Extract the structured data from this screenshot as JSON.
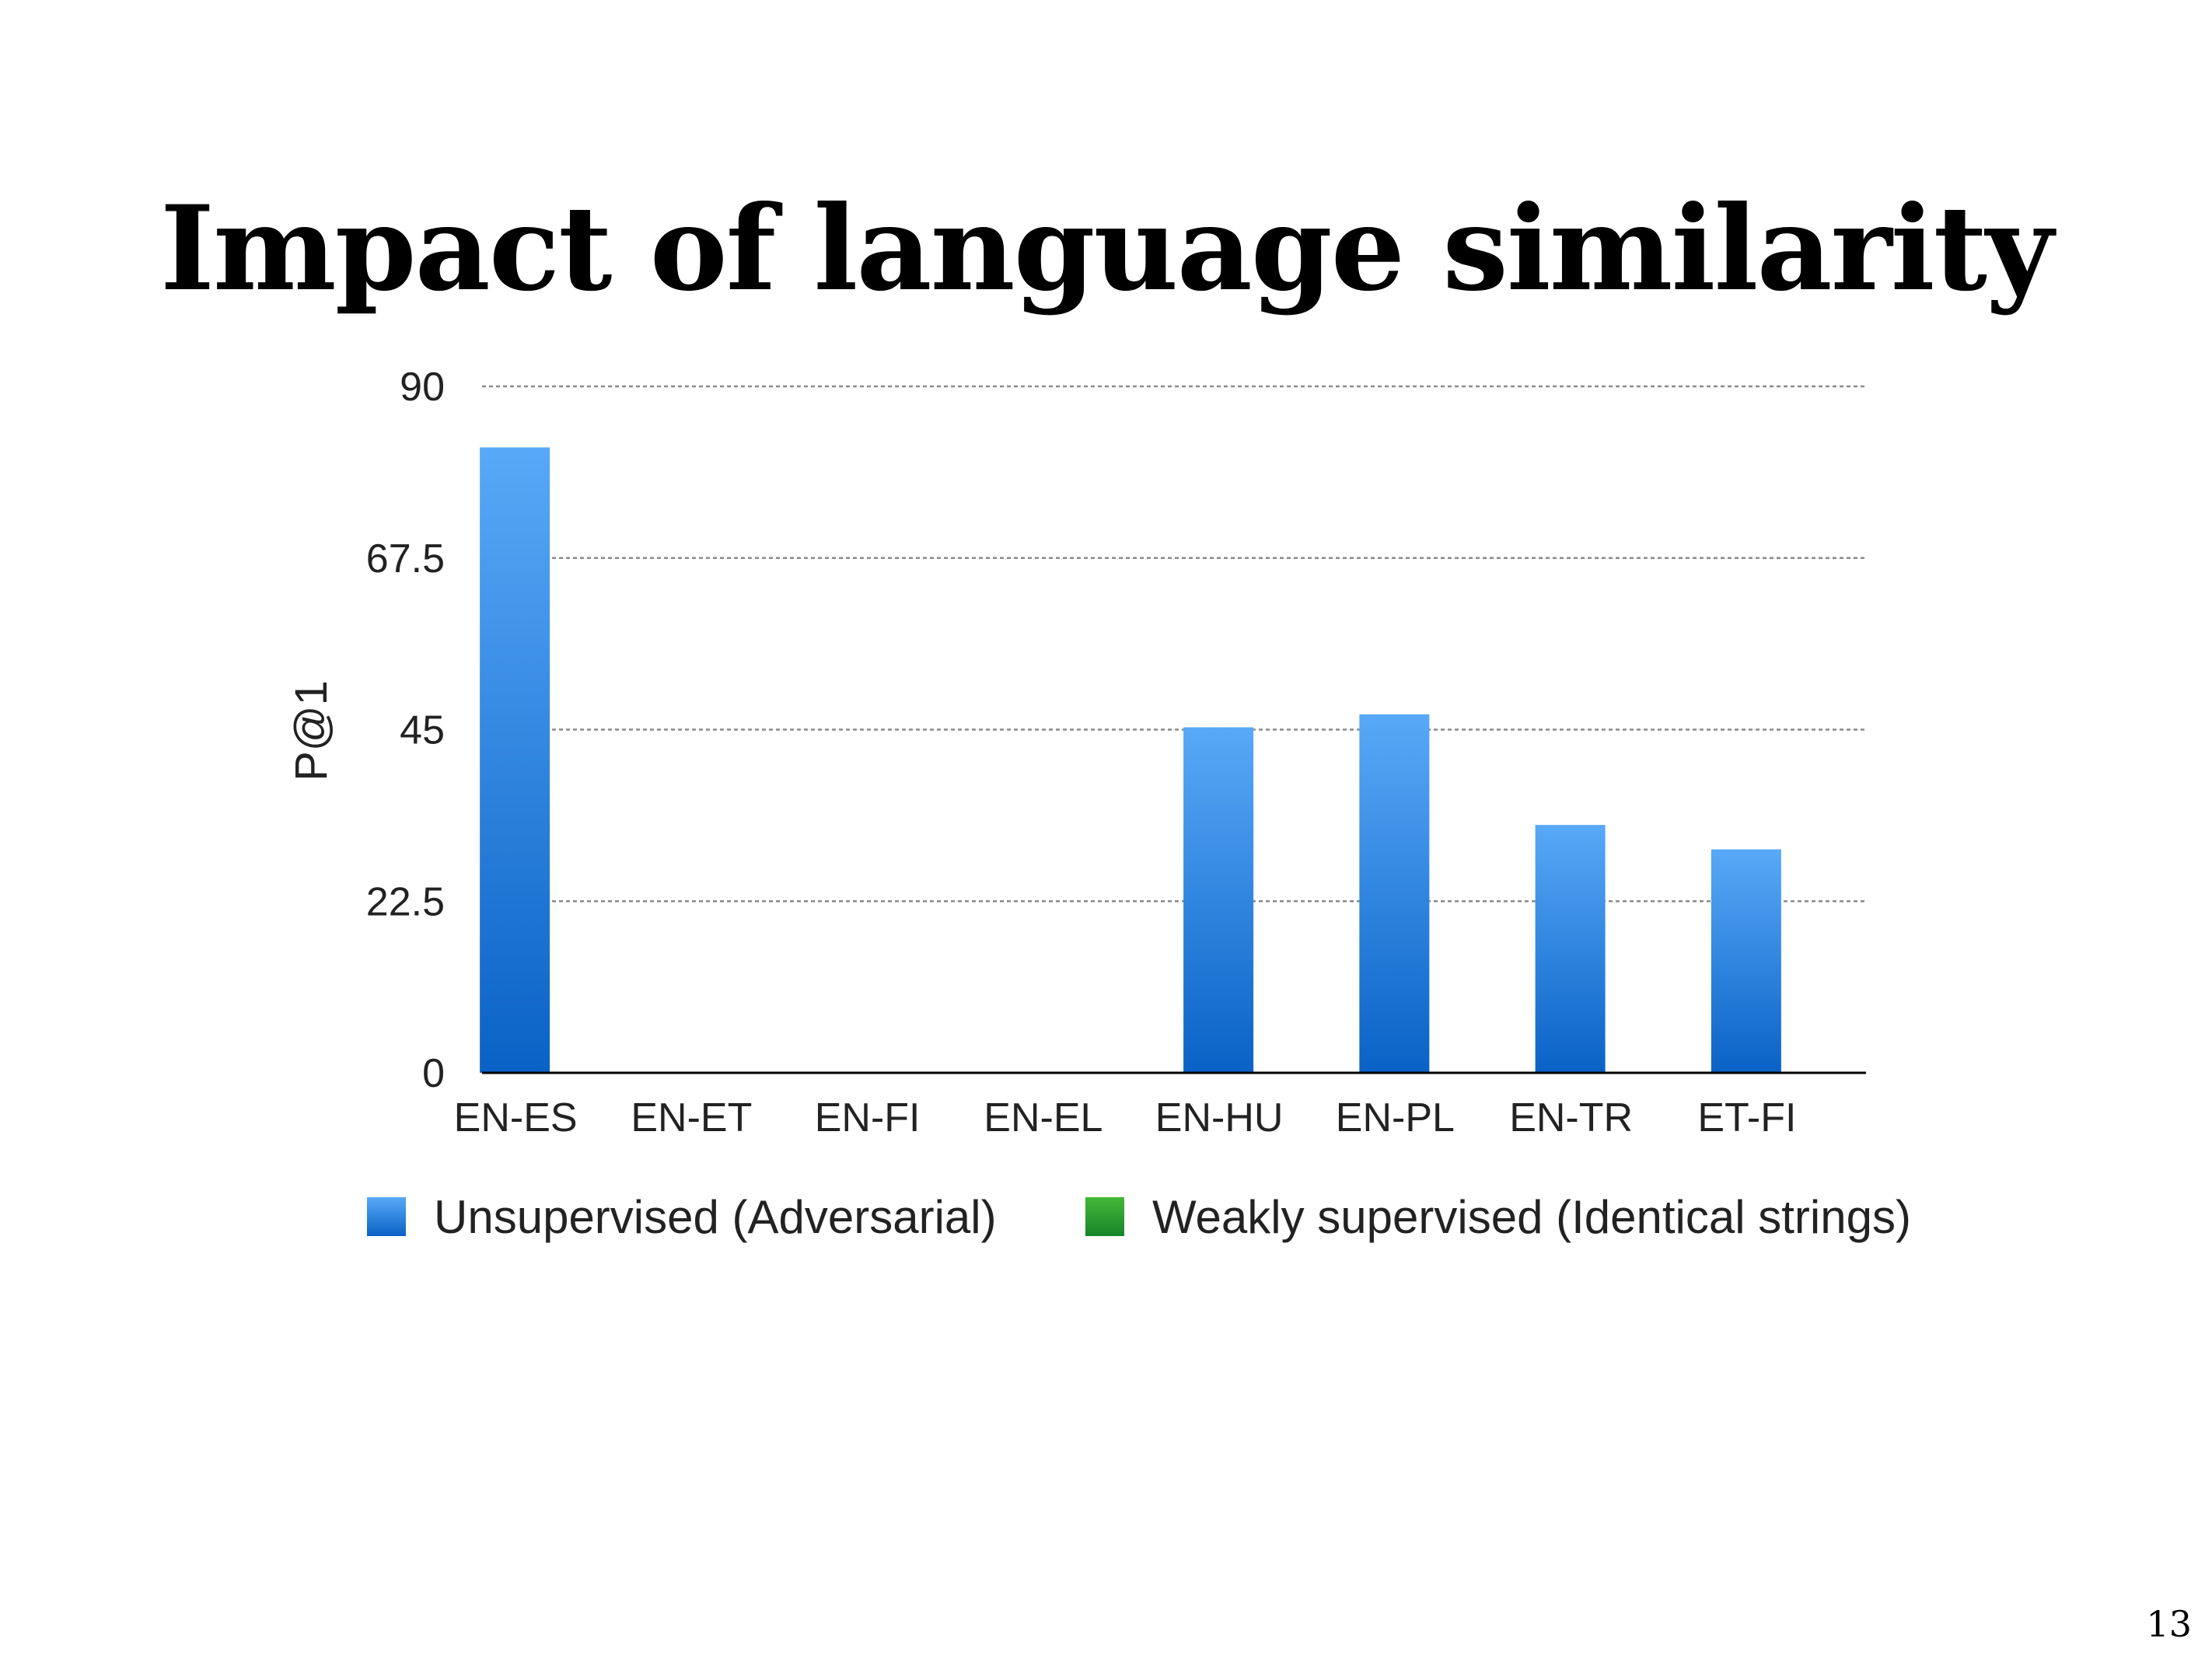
{
  "slide": {
    "title": "Impact of language similarity",
    "page_number": "13"
  },
  "colors": {
    "unsupervised_top": "#58a9f7",
    "unsupervised_bottom": "#0a62c6",
    "weakly_supervised_top": "#43b838",
    "weakly_supervised_bottom": "#16862a",
    "gridline": "#8a8a8a",
    "axis": "#000000"
  },
  "chart_data": {
    "type": "bar",
    "title": "",
    "xlabel": "",
    "ylabel": "P@1",
    "ylim": [
      0,
      90
    ],
    "yticks": [
      0,
      22.5,
      45,
      67.5,
      90
    ],
    "ytick_labels": [
      "0",
      "22.5",
      "45",
      "67.5",
      "90"
    ],
    "grid": true,
    "legend_position": "bottom",
    "categories": [
      "EN-ES",
      "EN-ET",
      "EN-FI",
      "EN-EL",
      "EN-HU",
      "EN-PL",
      "EN-TR",
      "ET-FI"
    ],
    "series": [
      {
        "name": "Unsupervised (Adversarial)",
        "color_key": "unsupervised",
        "values": [
          82,
          0,
          0,
          0,
          45.3,
          47,
          32.5,
          29.3
        ]
      },
      {
        "name": "Weakly supervised (Identical strings)",
        "color_key": "weakly_supervised",
        "values": [
          0,
          0,
          0,
          0,
          0,
          0,
          0,
          0
        ]
      }
    ]
  }
}
